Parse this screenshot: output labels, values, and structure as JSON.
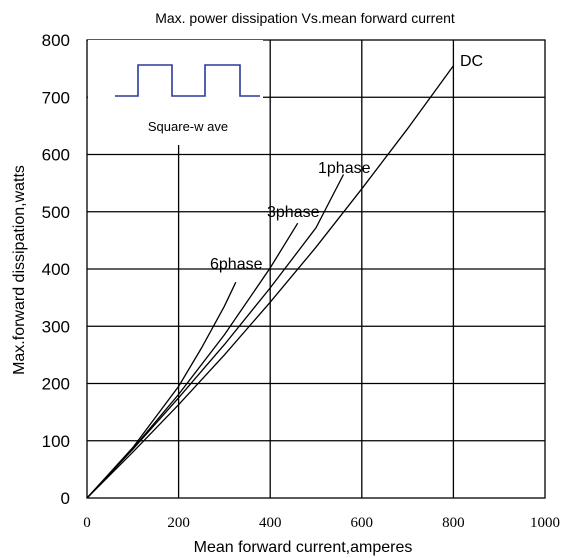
{
  "chart_data": {
    "type": "line",
    "title": "Max. power dissipation Vs.mean forward current",
    "xlabel": "Mean forward  current,amperes",
    "ylabel": "Max.forward  dissipation,watts",
    "xlim": [
      0,
      1000
    ],
    "ylim": [
      0,
      800
    ],
    "xticks": [
      "0",
      "200",
      "400",
      "600",
      "800",
      "1000"
    ],
    "yticks": [
      "0",
      "100",
      "200",
      "300",
      "400",
      "500",
      "600",
      "700",
      "800"
    ],
    "grid": true,
    "series": [
      {
        "name": "DC",
        "x": [
          0,
          100,
          200,
          300,
          400,
          500,
          600,
          700,
          800
        ],
        "y": [
          0,
          80,
          163,
          250,
          342,
          438,
          540,
          645,
          755
        ]
      },
      {
        "name": "1phase",
        "x": [
          0,
          100,
          200,
          300,
          400,
          500,
          560
        ],
        "y": [
          0,
          85,
          175,
          268,
          367,
          472,
          565
        ]
      },
      {
        "name": "3phase",
        "x": [
          0,
          100,
          200,
          300,
          400,
          460
        ],
        "y": [
          0,
          86,
          181,
          285,
          402,
          480
        ]
      },
      {
        "name": "6phase",
        "x": [
          0,
          100,
          200,
          250,
          300,
          325
        ],
        "y": [
          0,
          88,
          195,
          262,
          335,
          377
        ]
      }
    ],
    "inset": {
      "label": "Square-w ave",
      "waveform_color": "#2a3a9a"
    }
  }
}
